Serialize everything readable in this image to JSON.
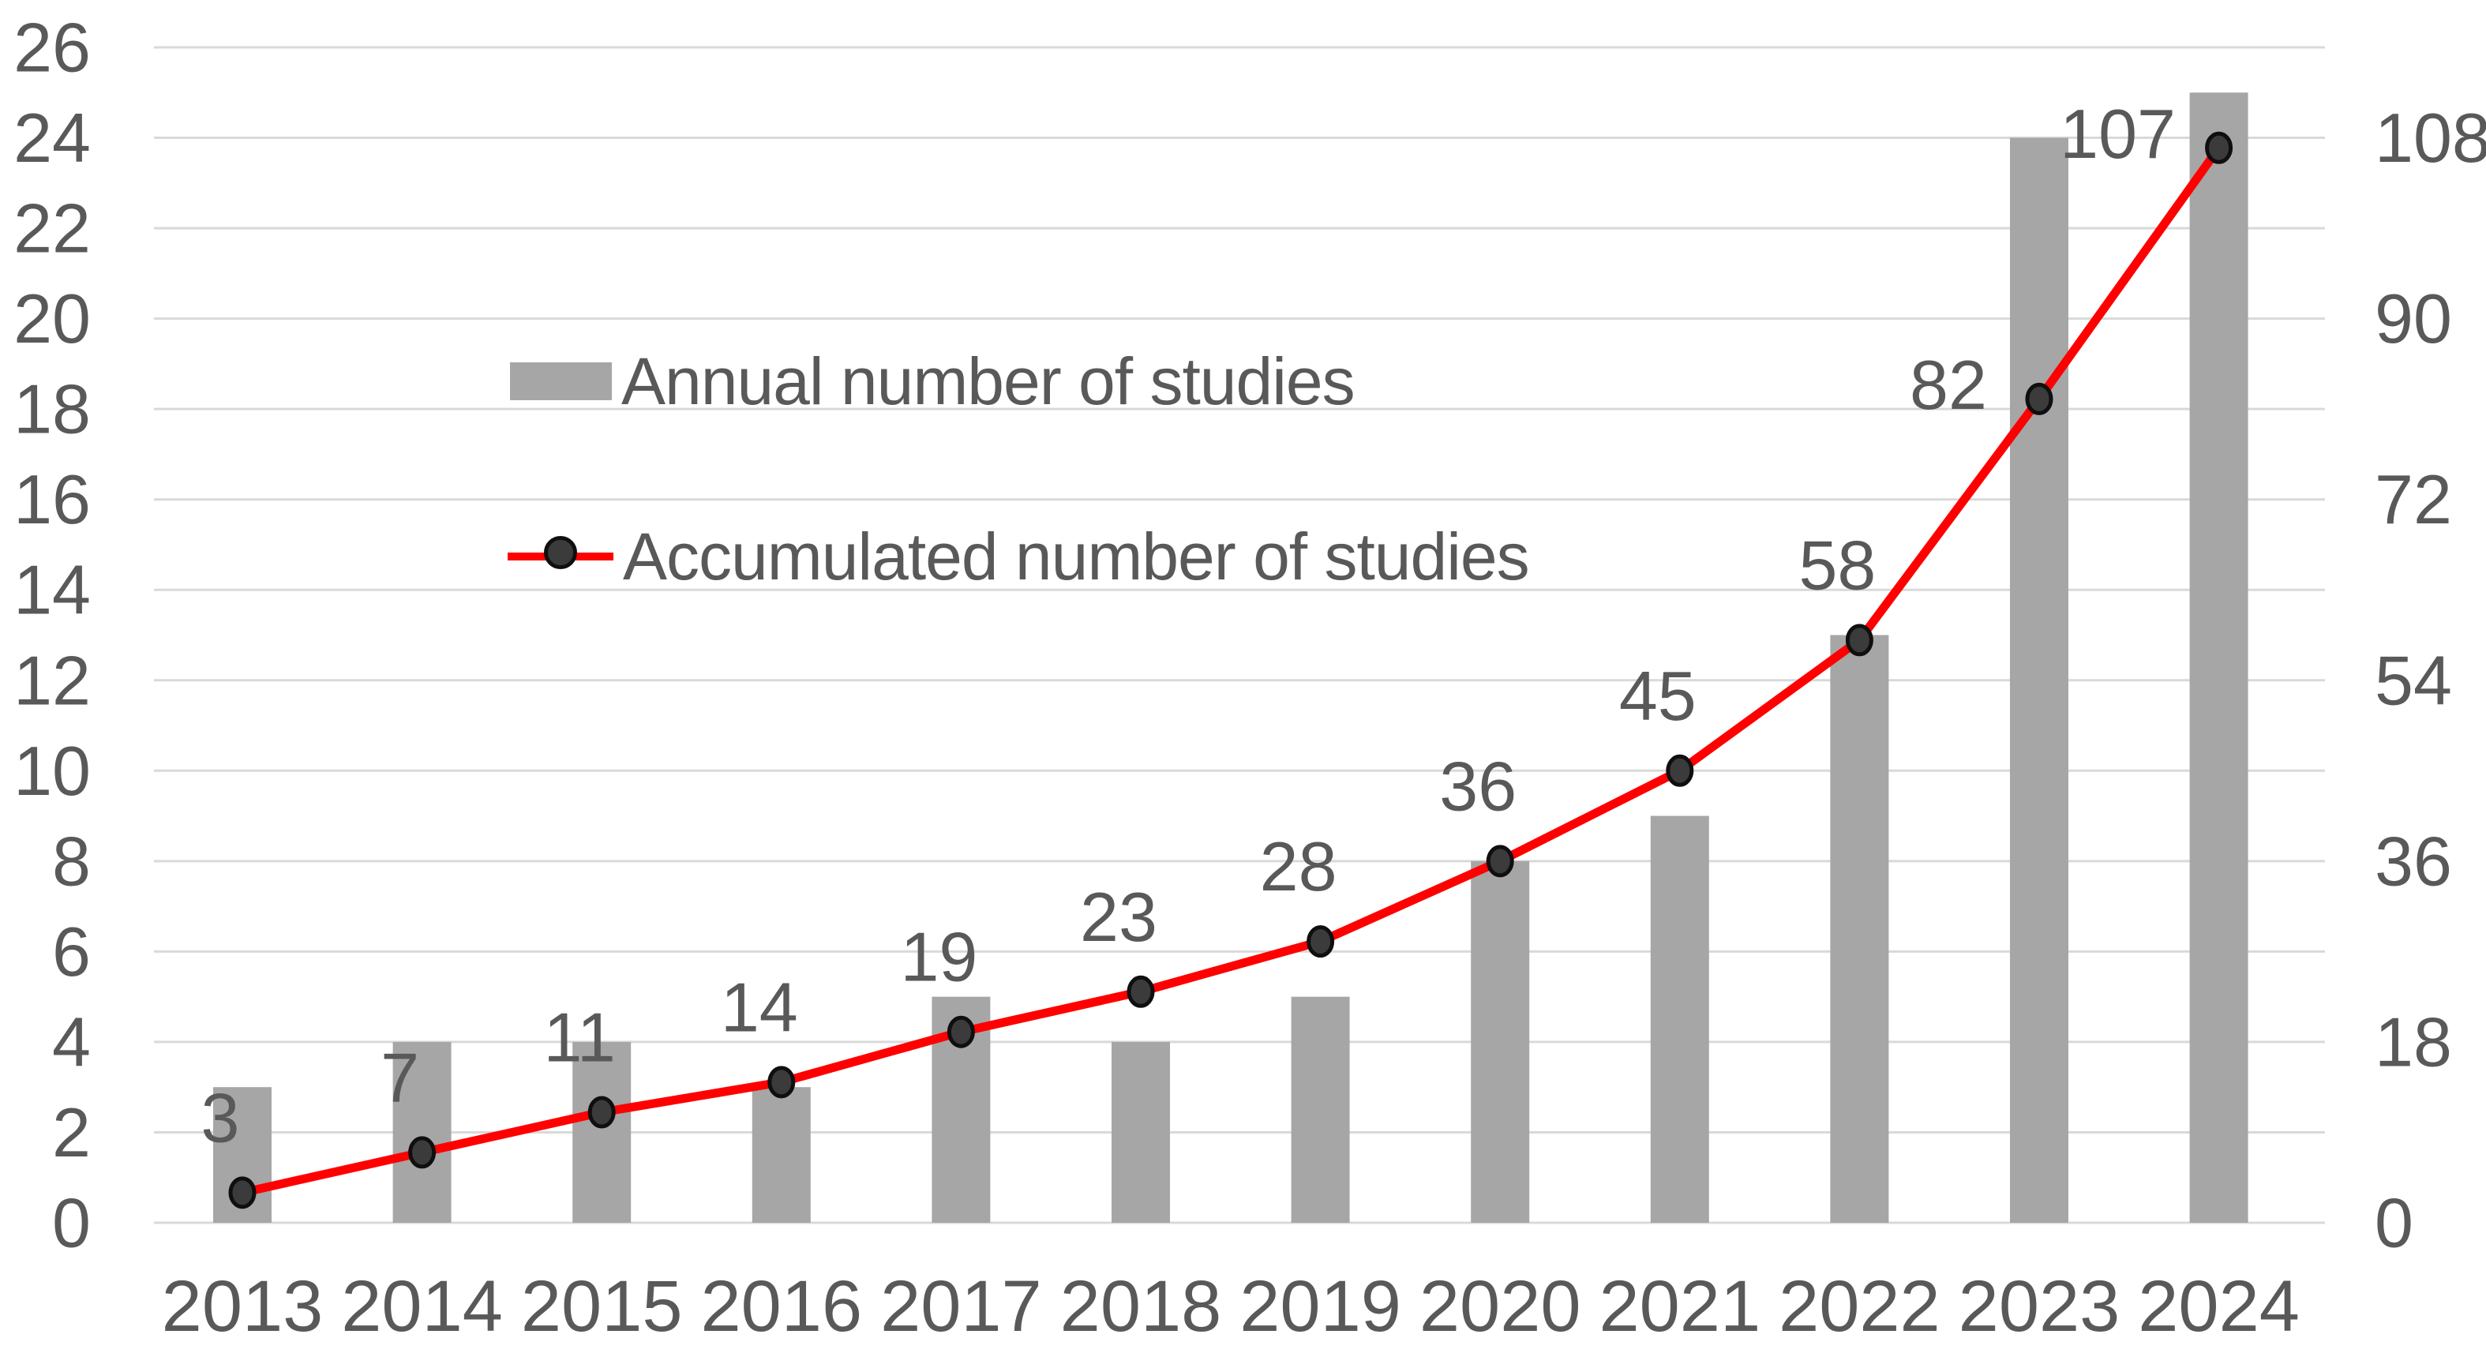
{
  "chart_data": {
    "type": "bar",
    "title": "",
    "categories": [
      "2013",
      "2014",
      "2015",
      "2016",
      "2017",
      "2018",
      "2019",
      "2020",
      "2021",
      "2022",
      "2023",
      "2024"
    ],
    "series": [
      {
        "name": "Annual number of studies",
        "type": "bar",
        "axis": "left",
        "values": [
          3,
          4,
          4,
          3,
          5,
          4,
          5,
          8,
          9,
          13,
          24,
          25
        ]
      },
      {
        "name": "Accumulated number of studies",
        "type": "line",
        "axis": "right",
        "values": [
          3,
          7,
          11,
          14,
          19,
          23,
          28,
          36,
          45,
          58,
          82,
          107
        ],
        "data_labels": [
          "3",
          "7",
          "11",
          "14",
          "19",
          "23",
          "28",
          "36",
          "45",
          "58",
          "82",
          "107"
        ]
      }
    ],
    "left_axis": {
      "min": 0,
      "max": 26,
      "step": 2,
      "tick_labels": [
        "0",
        "2",
        "4",
        "6",
        "8",
        "10",
        "12",
        "14",
        "16",
        "18",
        "20",
        "22",
        "24",
        "26"
      ]
    },
    "right_axis": {
      "min": 0,
      "max": 117,
      "step": 18,
      "tick_values": [
        0,
        18,
        36,
        54,
        72,
        90,
        108
      ],
      "tick_labels": [
        "0",
        "18",
        "36",
        "54",
        "72",
        "90",
        "108"
      ]
    },
    "grid": true,
    "legend_position": "inside-top-left",
    "colors": {
      "bar": "#a6a6a6",
      "line": "#ff0000",
      "marker_fill": "#3b3b3b",
      "marker_stroke": "#0f0f0f",
      "grid": "#d9d9d9",
      "text": "#595959",
      "background": "#ffffff"
    }
  },
  "legend": {
    "items": [
      {
        "label": "Annual number of studies"
      },
      {
        "label": "Accumulated number of studies"
      }
    ]
  }
}
